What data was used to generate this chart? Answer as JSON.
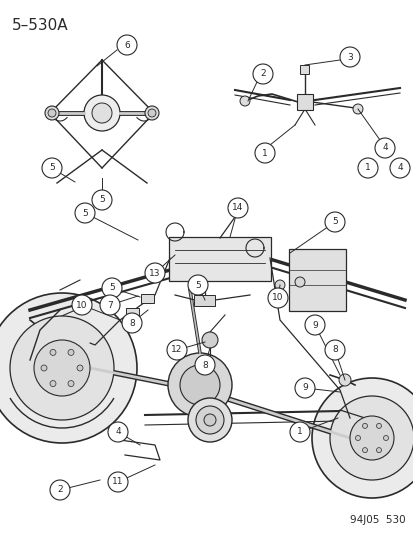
{
  "title": "5–530A",
  "footer": "94J05  530",
  "bg_color": "#ffffff",
  "title_fontsize": 11,
  "footer_fontsize": 7.5,
  "line_color": "#2a2a2a",
  "callout_fs": 6.5,
  "callout_r": 0.021
}
